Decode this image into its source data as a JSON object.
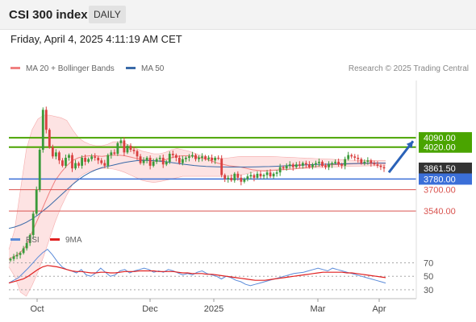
{
  "header": {
    "title": "CSI 300 index",
    "period_badge": "DAILY"
  },
  "datetime": "Friday, April 4, 2025 4:11:19 AM CET",
  "legend": {
    "bollinger_label": "MA 20 + Bollinger Bands",
    "ma50_label": "MA 50",
    "rsi_label": "RSI",
    "rsi_ma_label": "9MA"
  },
  "research": "Research © 2025 Trading Central",
  "colors": {
    "bollinger": "#f08080",
    "bollinger_fill": "#fde3e3",
    "ma50": "#3a6aa8",
    "resistance": "#4aa400",
    "support_blue": "#3b6fd8",
    "support_red": "#d9534f",
    "current_price": "#333333",
    "rsi": "#5b8bd9",
    "rsi_ma": "#e02020",
    "arrow": "#2a62b8"
  },
  "chart_data": [
    {
      "type": "candlestick",
      "ylim": [
        3420,
        4520
      ],
      "x_ticks": [
        "Oct",
        "Dec",
        "2025",
        "Mar",
        "Apr"
      ],
      "price_levels": [
        {
          "value": 4090.0,
          "label": "4090.00",
          "kind": "resistance"
        },
        {
          "value": 4020.0,
          "label": "4020.00",
          "kind": "resistance"
        },
        {
          "value": 3861.5,
          "label": "3861.50",
          "kind": "current"
        },
        {
          "value": 3780.0,
          "label": "3780.00",
          "kind": "support_blue"
        },
        {
          "value": 3700.0,
          "label": "3700.00",
          "kind": "support_red"
        },
        {
          "value": 3540.0,
          "label": "3540.00",
          "kind": "support_red"
        }
      ],
      "close": [
        3180,
        3200,
        3210,
        3225,
        3260,
        3300,
        3360,
        3520,
        3700,
        4000,
        4300,
        4150,
        4020,
        3950,
        3980,
        3920,
        3880,
        3940,
        3960,
        3860,
        3900,
        3880,
        3940,
        3910,
        3930,
        3950,
        3940,
        3920,
        3900,
        3880,
        3960,
        3980,
        3970,
        4050,
        4070,
        3980,
        4030,
        4000,
        3990,
        3950,
        3900,
        3920,
        3940,
        3880,
        3910,
        3930,
        3940,
        3890,
        3910,
        3970,
        3960,
        3940,
        3900,
        3930,
        3940,
        3950,
        3960,
        3930,
        3940,
        3950,
        3930,
        3940,
        3920,
        3940,
        3935,
        3810,
        3780,
        3790,
        3770,
        3820,
        3790,
        3760,
        3780,
        3800,
        3810,
        3790,
        3820,
        3800,
        3810,
        3830,
        3800,
        3820,
        3830,
        3870,
        3860,
        3880,
        3890,
        3870,
        3890,
        3880,
        3900,
        3890,
        3870,
        3890,
        3900,
        3910,
        3880,
        3870,
        3890,
        3900,
        3910,
        3890,
        3880,
        3930,
        3960,
        3950,
        3940,
        3930,
        3900,
        3910,
        3920,
        3900,
        3890,
        3880,
        3870,
        3860
      ],
      "ma20": [
        3180,
        3200,
        3230,
        3280,
        3380,
        3480,
        3580,
        3680,
        3770,
        3830,
        3880,
        3920,
        3940,
        3950,
        3955,
        3955,
        3950,
        3955,
        3960,
        3960,
        3955,
        3945,
        3935,
        3925,
        3920,
        3915,
        3915,
        3925,
        3940,
        3950,
        3955,
        3955,
        3950,
        3940,
        3930,
        3915,
        3900,
        3890,
        3880,
        3875,
        3870,
        3860,
        3850,
        3845,
        3840,
        3842,
        3846,
        3850,
        3852,
        3855,
        3860,
        3865,
        3870,
        3875,
        3880,
        3885,
        3888,
        3890,
        3892,
        3894,
        3895,
        3896,
        3897,
        3898,
        3898,
        3897
      ],
      "bollinger_upper": [
        3250,
        3400,
        3700,
        4000,
        4150,
        4230,
        4260,
        4260,
        4250,
        4240,
        4220,
        4150,
        4090,
        4060,
        4040,
        4030,
        4030,
        4040,
        4060,
        4060,
        4050,
        4030,
        4010,
        3990,
        3980,
        3970,
        3970,
        3980,
        4000,
        4010,
        4000,
        3990,
        3975,
        3960,
        3950,
        3940,
        3935,
        3935,
        3940,
        3945,
        3950,
        3950,
        3950,
        3950,
        3950,
        3950,
        3948,
        3946,
        3944,
        3942,
        3940,
        3938,
        3936,
        3934,
        3932,
        3930,
        3928,
        3926,
        3924,
        3922,
        3920,
        3920,
        3920,
        3920,
        3920,
        3920
      ],
      "bollinger_lower": [
        3120,
        3050,
        2930,
        2900,
        2980,
        3080,
        3200,
        3330,
        3460,
        3570,
        3660,
        3740,
        3790,
        3820,
        3840,
        3850,
        3860,
        3860,
        3855,
        3845,
        3830,
        3810,
        3790,
        3770,
        3760,
        3755,
        3760,
        3770,
        3780,
        3790,
        3800,
        3800,
        3800,
        3800,
        3800,
        3800,
        3800,
        3800,
        3800,
        3805,
        3810,
        3820,
        3830,
        3840,
        3845,
        3848,
        3850,
        3852,
        3854,
        3856,
        3858,
        3860,
        3862,
        3864,
        3866,
        3868,
        3870,
        3872,
        3874,
        3876,
        3877,
        3878,
        3879,
        3880,
        3880,
        3880
      ],
      "ma50": [
        3410,
        3420,
        3435,
        3455,
        3480,
        3510,
        3545,
        3580,
        3620,
        3660,
        3700,
        3740,
        3775,
        3805,
        3830,
        3850,
        3865,
        3875,
        3885,
        3895,
        3905,
        3912,
        3918,
        3920,
        3920,
        3918,
        3915,
        3910,
        3904,
        3898,
        3892,
        3887,
        3882,
        3878,
        3875,
        3873,
        3872,
        3871,
        3870,
        3870,
        3870,
        3870,
        3871,
        3872,
        3873,
        3874,
        3876,
        3878,
        3880,
        3882,
        3884,
        3886,
        3888,
        3890,
        3891,
        3892,
        3893,
        3894,
        3895,
        3896,
        3897,
        3898,
        3899,
        3900,
        3900,
        3900
      ]
    },
    {
      "type": "line",
      "title": "RSI",
      "ylim": [
        18,
        92
      ],
      "y_ticks": [
        70,
        50,
        30
      ],
      "x_ticks": [
        "Oct",
        "Dec",
        "2025",
        "Mar",
        "Apr"
      ],
      "rsi": [
        40,
        44,
        48,
        55,
        62,
        70,
        78,
        85,
        90,
        82,
        72,
        64,
        60,
        58,
        55,
        60,
        52,
        50,
        55,
        62,
        56,
        50,
        52,
        58,
        60,
        55,
        58,
        60,
        62,
        60,
        56,
        58,
        56,
        60,
        58,
        55,
        52,
        54,
        52,
        56,
        58,
        54,
        52,
        50,
        46,
        50,
        48,
        44,
        42,
        38,
        36,
        38,
        40,
        42,
        44,
        46,
        48,
        50,
        52,
        54,
        55,
        56,
        58,
        60,
        62,
        60,
        58,
        62,
        60,
        58,
        56,
        54,
        52,
        50,
        48,
        46,
        44,
        42,
        40
      ],
      "rsi_ma": [
        40,
        42,
        44,
        46,
        50,
        55,
        60,
        64,
        66,
        65,
        64,
        62,
        60,
        58,
        57,
        57,
        56,
        55,
        55,
        56,
        56,
        55,
        55,
        56,
        57,
        57,
        57,
        58,
        58,
        58,
        58,
        57,
        57,
        57,
        57,
        56,
        55,
        55,
        54,
        54,
        54,
        53,
        53,
        52,
        51,
        50,
        49,
        48,
        47,
        46,
        45,
        44,
        44,
        44,
        45,
        46,
        47,
        48,
        49,
        50,
        51,
        52,
        53,
        54,
        55,
        56,
        56,
        56,
        56,
        56,
        55,
        55,
        54,
        53,
        52,
        51,
        50,
        49,
        48
      ]
    }
  ]
}
